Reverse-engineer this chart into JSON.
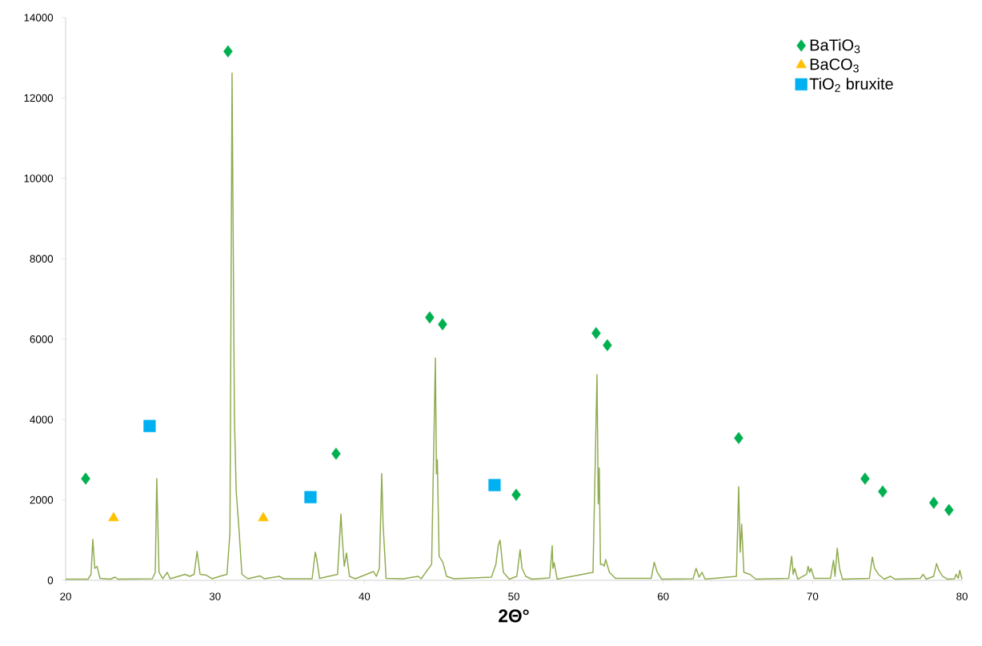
{
  "chart_data": {
    "type": "line",
    "xlabel": "2Θ°",
    "xlim": [
      20,
      80
    ],
    "ylim": [
      0,
      14000
    ],
    "xticks": [
      20,
      30,
      40,
      50,
      60,
      70,
      80
    ],
    "yticks": [
      0,
      2000,
      4000,
      6000,
      8000,
      10000,
      12000,
      14000
    ],
    "grid": false,
    "legend": "top right",
    "series": [
      {
        "color": "#8fab4e",
        "marker": "none",
        "x": [
          20,
          20.5,
          21.5,
          21.7,
          21.82,
          21.95,
          22.1,
          22.3,
          23.0,
          23.3,
          23.5,
          25.8,
          26.0,
          26.1,
          26.25,
          26.5,
          26.8,
          27.0,
          28.0,
          28.3,
          28.6,
          28.8,
          29.0,
          29.4,
          29.8,
          30.3,
          30.8,
          31.0,
          31.14,
          31.3,
          31.42,
          31.6,
          31.8,
          32.2,
          33.0,
          33.3,
          34.3,
          34.6,
          36.5,
          36.71,
          36.8,
          37.0,
          38.2,
          38.43,
          38.5,
          38.65,
          38.8,
          39.0,
          39.4,
          40.6,
          40.8,
          41.0,
          41.16,
          41.25,
          41.45,
          42.6,
          43.6,
          43.8,
          44.5,
          44.75,
          44.82,
          44.88,
          45.0,
          45.25,
          45.5,
          46.0,
          48.5,
          48.8,
          48.95,
          49.08,
          49.3,
          49.7,
          50.2,
          50.42,
          50.55,
          50.8,
          51.2,
          52.4,
          52.57,
          52.62,
          52.7,
          52.9,
          55.3,
          55.57,
          55.65,
          55.72,
          55.8,
          55.95,
          56.05,
          56.15,
          56.4,
          56.8,
          59.2,
          59.4,
          59.6,
          59.9,
          62.0,
          62.2,
          62.4,
          62.6,
          62.8,
          64.9,
          65.05,
          65.15,
          65.25,
          65.4,
          65.8,
          66.2,
          68.4,
          68.6,
          68.7,
          68.8,
          69.0,
          69.6,
          69.7,
          69.8,
          69.9,
          70.1,
          71.2,
          71.4,
          71.5,
          71.65,
          71.8,
          72.0,
          73.8,
          74.0,
          74.15,
          74.4,
          74.8,
          75.2,
          75.5,
          77.2,
          77.4,
          77.6,
          78.1,
          78.3,
          78.45,
          78.7,
          79.0,
          79.5,
          79.6,
          79.75,
          79.85,
          80
        ],
        "values": [
          30,
          30,
          30,
          150,
          1020,
          300,
          350,
          50,
          30,
          80,
          30,
          40,
          200,
          2530,
          200,
          40,
          200,
          40,
          150,
          100,
          150,
          720,
          150,
          130,
          40,
          100,
          150,
          1200,
          12620,
          4000,
          2200,
          1300,
          150,
          40,
          110,
          40,
          100,
          40,
          40,
          700,
          550,
          50,
          150,
          1650,
          1150,
          350,
          680,
          100,
          40,
          220,
          100,
          300,
          2660,
          1400,
          50,
          40,
          100,
          40,
          400,
          5530,
          2650,
          3000,
          600,
          450,
          100,
          40,
          80,
          400,
          850,
          1000,
          200,
          30,
          100,
          760,
          300,
          100,
          30,
          60,
          860,
          300,
          440,
          30,
          200,
          5120,
          1900,
          2800,
          400,
          400,
          350,
          520,
          200,
          50,
          50,
          450,
          200,
          30,
          40,
          300,
          80,
          200,
          30,
          100,
          2330,
          700,
          1400,
          200,
          150,
          30,
          50,
          600,
          150,
          300,
          30,
          150,
          350,
          200,
          300,
          50,
          50,
          500,
          100,
          800,
          300,
          30,
          50,
          580,
          300,
          150,
          30,
          100,
          30,
          50,
          150,
          30,
          100,
          420,
          250,
          100,
          30,
          40,
          150,
          50,
          250,
          30
        ]
      },
      {
        "type": "scatter",
        "name": "BaTiO$_{3}$",
        "color": "#00b050",
        "marker": "diamond",
        "x": [
          21.34,
          30.87,
          38.1,
          44.37,
          45.23,
          50.16,
          55.51,
          56.26,
          65.05,
          73.51,
          74.69,
          78.11,
          79.13
        ],
        "values": [
          2530,
          13160,
          3150,
          6540,
          6370,
          2130,
          6150,
          5850,
          3540,
          2530,
          2210,
          1930,
          1750
        ]
      },
      {
        "type": "scatter",
        "name": "BaCO$_{3}$",
        "color": "#ffc000",
        "marker": "triangle",
        "x": [
          23.21,
          33.23
        ],
        "values": [
          1550,
          1550
        ]
      },
      {
        "type": "scatter",
        "name": "TiO$_{2}$ bruxite",
        "color": "#00b0f0",
        "marker": "square",
        "x": [
          25.62,
          36.39,
          48.71
        ],
        "values": [
          3840,
          2070,
          2370
        ]
      }
    ]
  }
}
